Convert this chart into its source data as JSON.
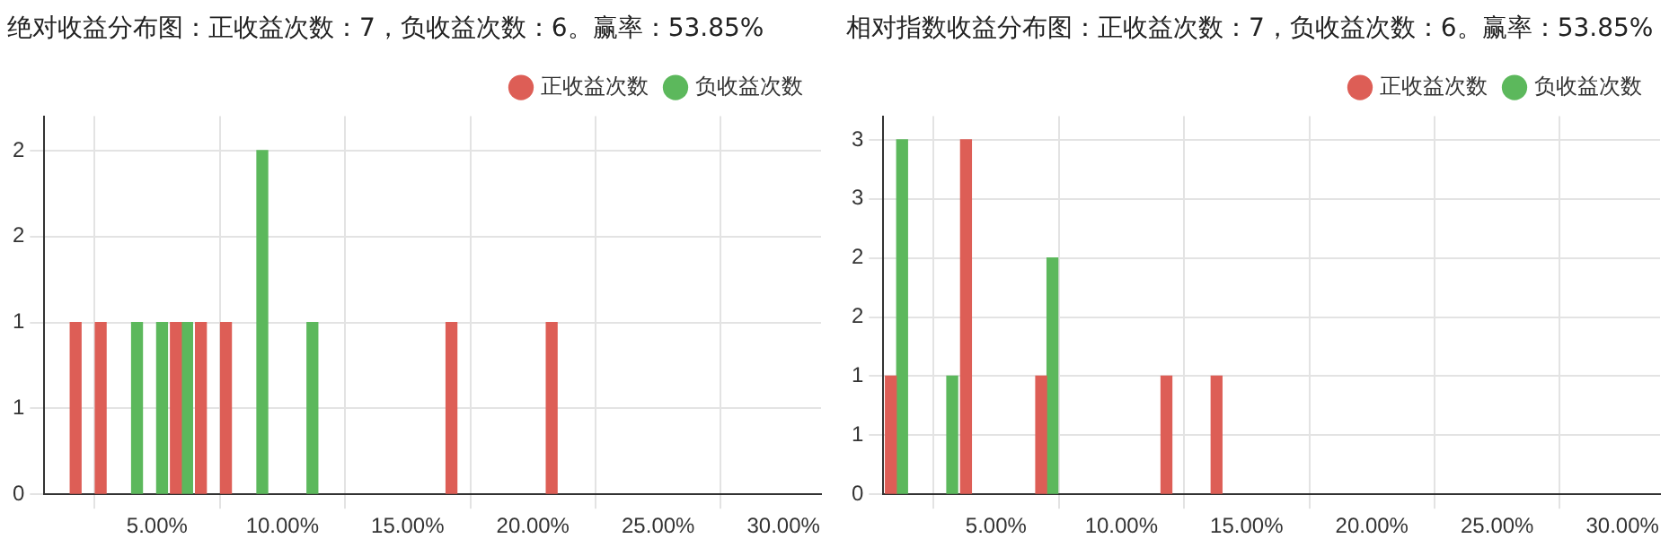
{
  "chart_data": [
    {
      "type": "bar",
      "title": "绝对收益分布图：正收益次数：7，负收益次数：6。赢率：53.85%",
      "legend": "top right",
      "grid": true,
      "series": [
        {
          "name": "正收益次数",
          "color": "#dd5e56",
          "x": [
            1.75,
            2.75,
            5.75,
            6.75,
            7.75,
            16.75,
            20.75
          ],
          "values": [
            1,
            1,
            1,
            1,
            1,
            1,
            1
          ]
        },
        {
          "name": "负收益次数",
          "color": "#5cb85c",
          "x": [
            4.2,
            5.2,
            6.2,
            9.2,
            11.2
          ],
          "values": [
            1,
            1,
            1,
            2,
            1
          ]
        }
      ],
      "xlim": [
        0.5,
        31.5
      ],
      "xticks": [
        {
          "value": 5,
          "label": "5.00%"
        },
        {
          "value": 10,
          "label": "10.00%"
        },
        {
          "value": 15,
          "label": "15.00%"
        },
        {
          "value": 20,
          "label": "20.00%"
        },
        {
          "value": 25,
          "label": "25.00%"
        },
        {
          "value": 30,
          "label": "30.00%"
        }
      ],
      "ylim": [
        0,
        2.2
      ],
      "yticks": [
        0,
        {
          "value": 0.5,
          "label": "1"
        },
        1,
        {
          "value": 1.5,
          "label": "2"
        },
        2
      ]
    },
    {
      "type": "bar",
      "title": "相对指数收益分布图：正收益次数：7，负收益次数：6。赢率：53.85%",
      "legend": "top right",
      "grid": true,
      "series": [
        {
          "name": "正收益次数",
          "color": "#dd5e56",
          "x": [
            0.8,
            3.8,
            6.8,
            11.8,
            13.8
          ],
          "values": [
            1,
            3,
            1,
            1,
            1
          ]
        },
        {
          "name": "负收益次数",
          "color": "#5cb85c",
          "x": [
            1.25,
            3.25,
            7.25
          ],
          "values": [
            3,
            1,
            2
          ]
        }
      ],
      "xlim": [
        0.5,
        31.5
      ],
      "xticks": [
        {
          "value": 5,
          "label": "5.00%"
        },
        {
          "value": 10,
          "label": "10.00%"
        },
        {
          "value": 15,
          "label": "15.00%"
        },
        {
          "value": 20,
          "label": "20.00%"
        },
        {
          "value": 25,
          "label": "25.00%"
        },
        {
          "value": 30,
          "label": "30.00%"
        }
      ],
      "ylim": [
        0,
        3.2
      ],
      "yticks": [
        0,
        {
          "value": 0.5,
          "label": "1"
        },
        1,
        {
          "value": 1.5,
          "label": "2"
        },
        2,
        {
          "value": 2.5,
          "label": "3"
        },
        3
      ]
    }
  ]
}
